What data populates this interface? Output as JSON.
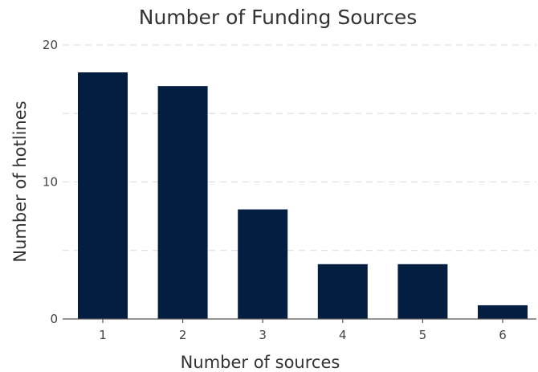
{
  "chart_data": {
    "type": "bar",
    "title": "Number of Funding Sources",
    "xlabel": "Number of sources",
    "ylabel": "Number of hotlines",
    "categories": [
      "1",
      "2",
      "3",
      "4",
      "5",
      "6"
    ],
    "values": [
      18,
      17,
      8,
      4,
      4,
      1
    ],
    "ylim": [
      0,
      20
    ],
    "yticks": [
      0,
      10,
      20
    ],
    "grid": true,
    "legend": "none",
    "bar_color": "#041e42"
  }
}
